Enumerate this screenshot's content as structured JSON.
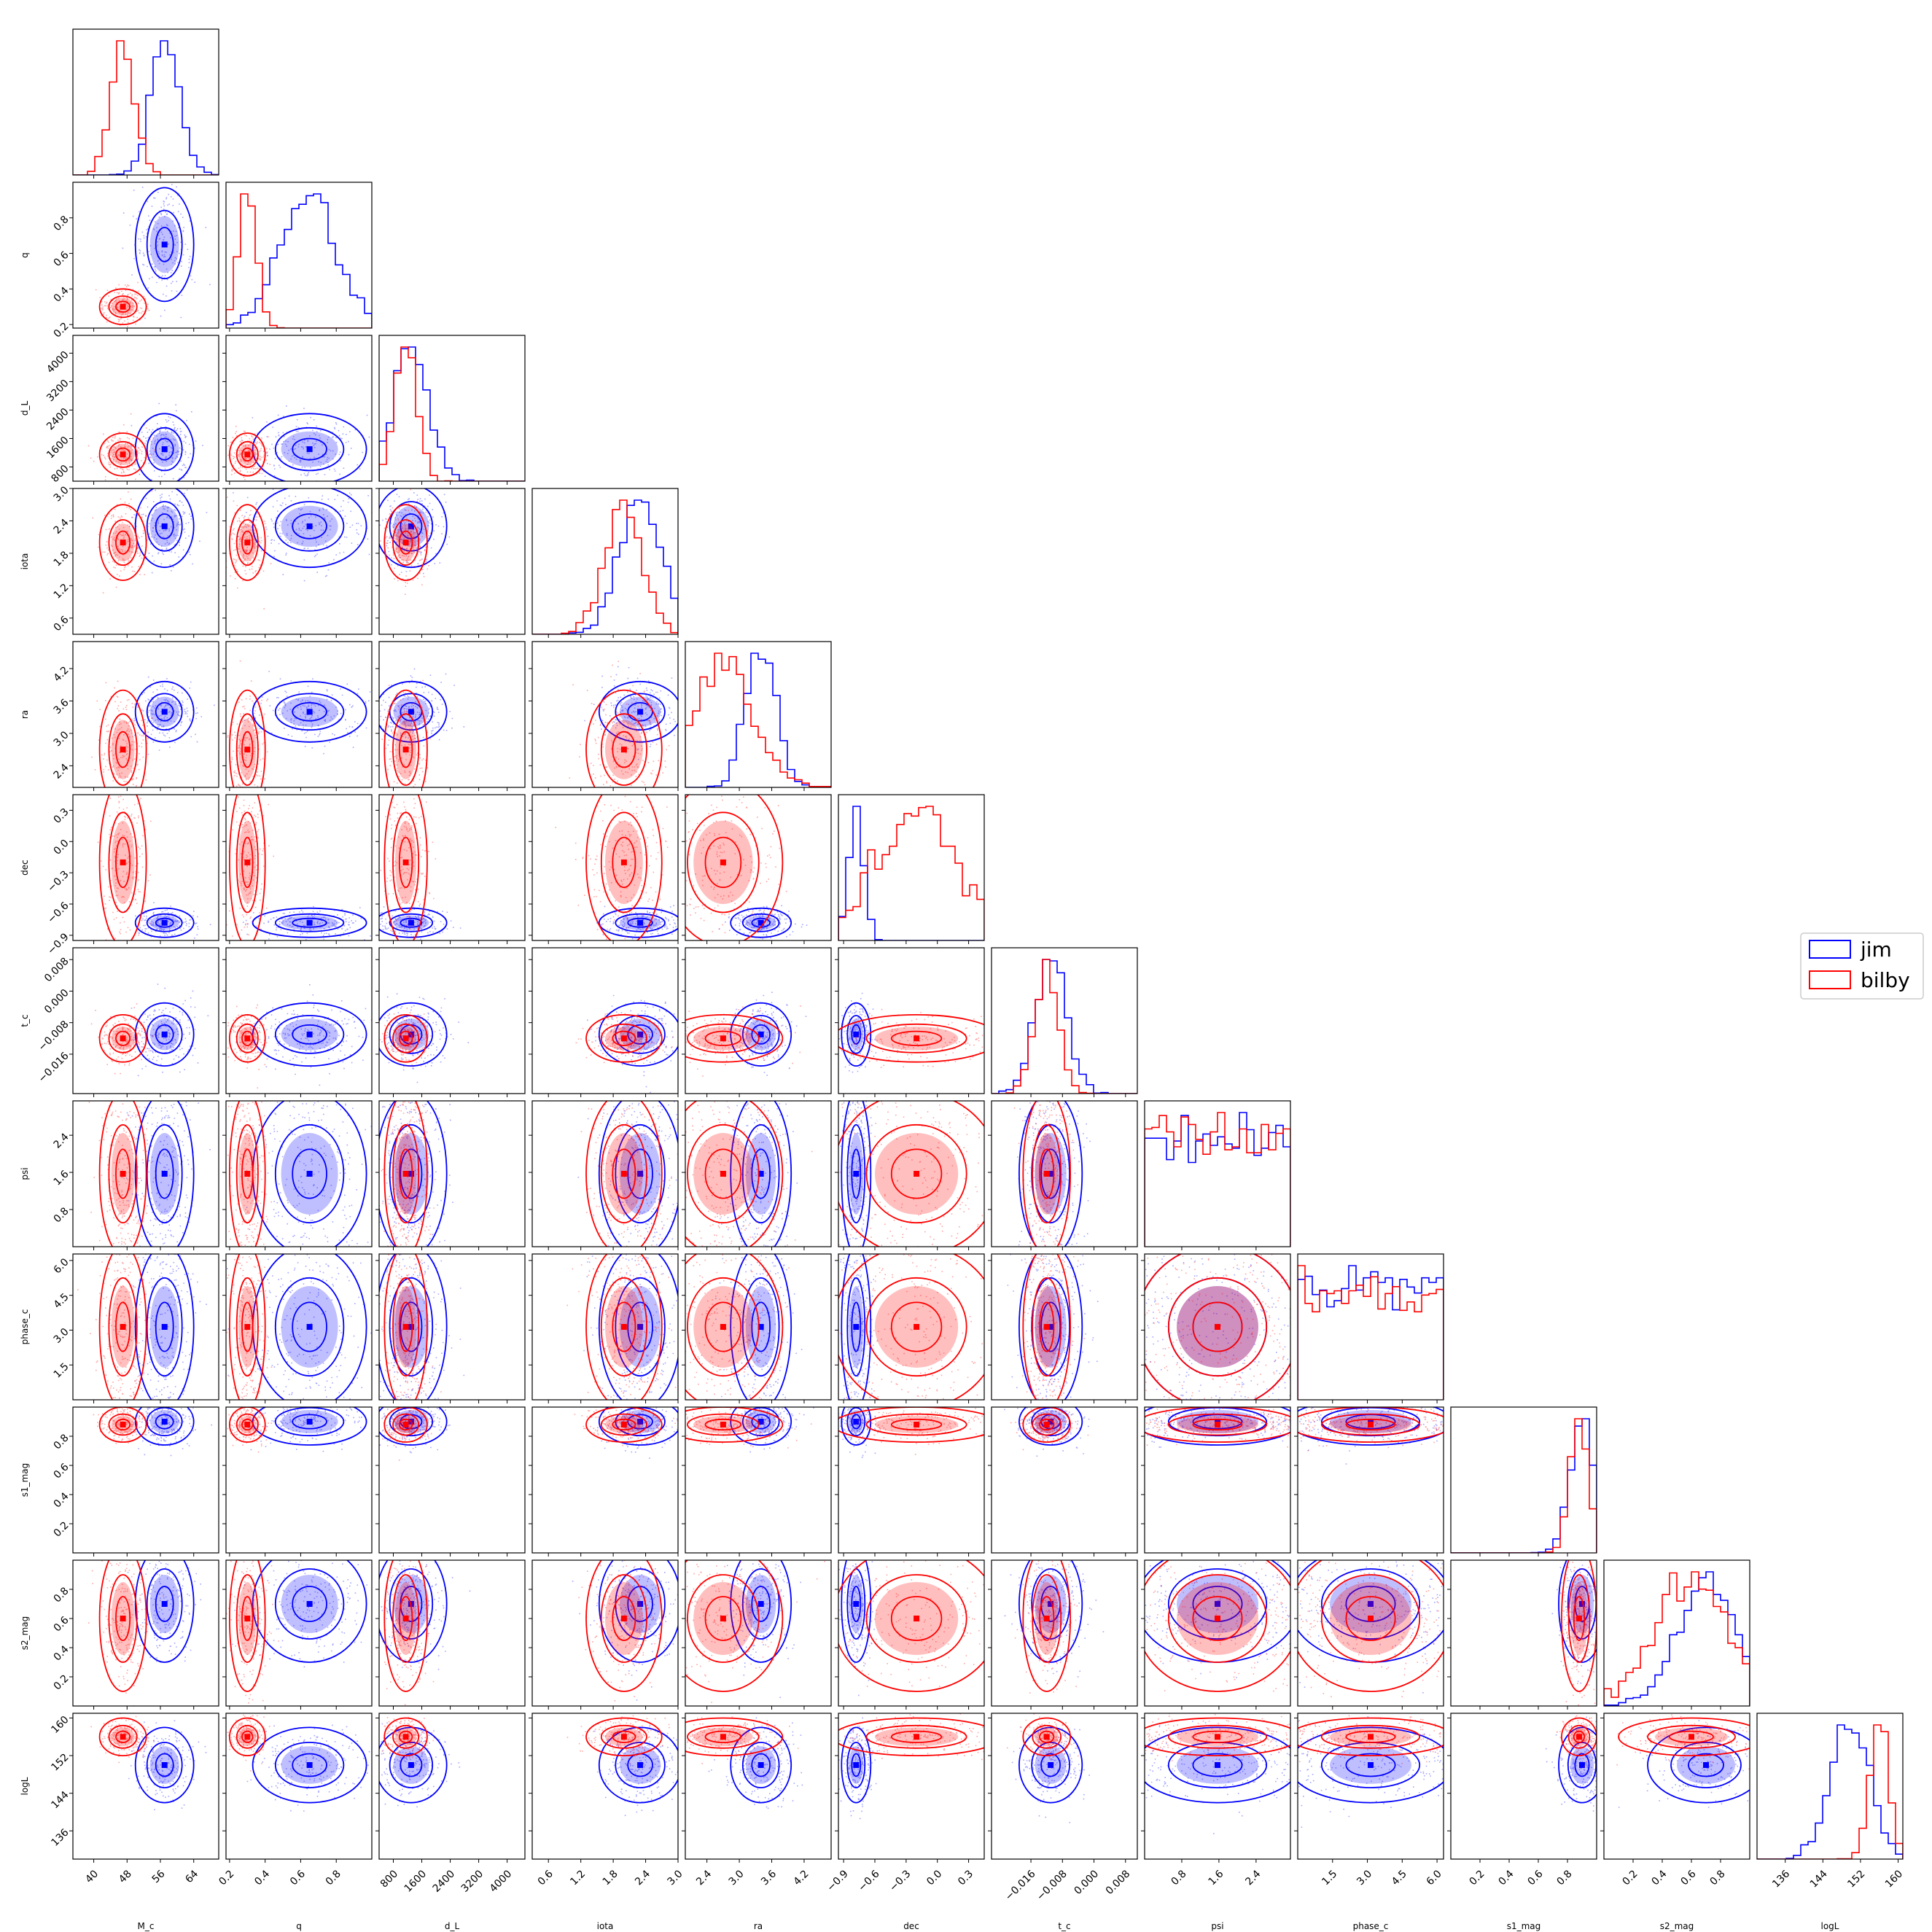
{
  "chart_data": {
    "type": "corner",
    "parameters": [
      {
        "name": "M_c",
        "range": [
          35,
          70
        ],
        "ticks": [
          40,
          48,
          56,
          64
        ],
        "tick_labels": [
          "40",
          "48",
          "56",
          "64"
        ]
      },
      {
        "name": "q",
        "range": [
          0.18,
          1.0
        ],
        "ticks": [
          0.2,
          0.4,
          0.6,
          0.8
        ],
        "tick_labels": [
          "0.2",
          "0.4",
          "0.6",
          "0.8"
        ]
      },
      {
        "name": "d_L",
        "range": [
          400,
          4500
        ],
        "ticks": [
          800,
          1600,
          2400,
          3200,
          4000
        ],
        "tick_labels": [
          "800",
          "1600",
          "2400",
          "3200",
          "4000"
        ]
      },
      {
        "name": "iota",
        "range": [
          0.3,
          3.0
        ],
        "ticks": [
          0.6,
          1.2,
          1.8,
          2.4,
          3.0
        ],
        "tick_labels": [
          "0.6",
          "1.2",
          "1.8",
          "2.4",
          "3.0"
        ]
      },
      {
        "name": "ra",
        "range": [
          2.0,
          4.7
        ],
        "ticks": [
          2.4,
          3.0,
          3.6,
          4.2
        ],
        "tick_labels": [
          "2.4",
          "3.0",
          "3.6",
          "4.2"
        ]
      },
      {
        "name": "dec",
        "range": [
          -0.95,
          0.45
        ],
        "ticks": [
          -0.9,
          -0.6,
          -0.3,
          0.0,
          0.3
        ],
        "tick_labels": [
          "−0.9",
          "−0.6",
          "−0.3",
          "0.0",
          "0.3"
        ]
      },
      {
        "name": "t_c",
        "range": [
          -0.026,
          0.011
        ],
        "ticks": [
          -0.016,
          -0.008,
          0.0,
          0.008
        ],
        "tick_labels": [
          "−0.016",
          "−0.008",
          "0.000",
          "0.008"
        ]
      },
      {
        "name": "psi",
        "range": [
          0.0,
          3.14
        ],
        "ticks": [
          0.8,
          1.6,
          2.4
        ],
        "tick_labels": [
          "0.8",
          "1.6",
          "2.4"
        ]
      },
      {
        "name": "phase_c",
        "range": [
          0.0,
          6.28
        ],
        "ticks": [
          1.5,
          3.0,
          4.5,
          6.0
        ],
        "tick_labels": [
          "1.5",
          "3.0",
          "4.5",
          "6.0"
        ]
      },
      {
        "name": "s1_mag",
        "range": [
          0.0,
          1.0
        ],
        "ticks": [
          0.2,
          0.4,
          0.6,
          0.8
        ],
        "tick_labels": [
          "0.2",
          "0.4",
          "0.6",
          "0.8"
        ]
      },
      {
        "name": "s2_mag",
        "range": [
          0.0,
          1.0
        ],
        "ticks": [
          0.2,
          0.4,
          0.6,
          0.8
        ],
        "tick_labels": [
          "0.2",
          "0.4",
          "0.6",
          "0.8"
        ]
      },
      {
        "name": "logL",
        "range": [
          130,
          161
        ],
        "ticks": [
          136,
          144,
          152,
          160
        ],
        "tick_labels": [
          "136",
          "144",
          "152",
          "160"
        ]
      }
    ],
    "series": [
      {
        "name": "jim",
        "color": "#0000ff",
        "means": [
          57,
          0.65,
          1300,
          2.3,
          3.4,
          -0.78,
          -0.011,
          1.57,
          3.14,
          0.9,
          0.7,
          150
        ],
        "sds": [
          3.5,
          0.16,
          500,
          0.38,
          0.28,
          0.07,
          0.004,
          0.9,
          1.8,
          0.08,
          0.2,
          4
        ],
        "uniform": [
          false,
          false,
          false,
          false,
          false,
          false,
          false,
          true,
          true,
          false,
          false,
          false
        ]
      },
      {
        "name": "bilby",
        "color": "#ff0000",
        "means": [
          47,
          0.3,
          1150,
          2.0,
          2.7,
          -0.2,
          -0.012,
          1.2,
          3.14,
          0.88,
          0.6,
          156
        ],
        "sds": [
          2.8,
          0.05,
          300,
          0.35,
          0.55,
          0.4,
          0.003,
          0.9,
          1.8,
          0.06,
          0.25,
          2
        ],
        "uniform": [
          false,
          false,
          false,
          false,
          false,
          false,
          false,
          true,
          true,
          false,
          false,
          false
        ]
      }
    ],
    "legend": {
      "placement": "right",
      "entries": [
        "jim",
        "bilby"
      ]
    }
  }
}
